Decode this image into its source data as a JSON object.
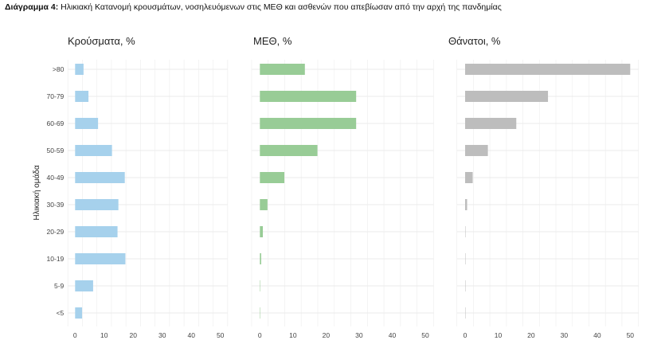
{
  "caption": {
    "label": "Διάγραμμα 4:",
    "text": " Ηλικιακή Κατανομή κρουσμάτων, νοσηλευόμενων στις ΜΕΘ και ασθενών που απεβίωσαν από την αρχή της πανδημίας"
  },
  "chart_data": [
    {
      "type": "bar",
      "orientation": "horizontal",
      "title": "Κρούσματα, %",
      "ylabel": "Ηλικιακή ομάδα",
      "xlim": [
        0,
        50
      ],
      "xticks": [
        0,
        10,
        20,
        30,
        40,
        50
      ],
      "grid": true,
      "color": "#a6d1ec",
      "categories": [
        ">80",
        "70-79",
        "60-69",
        "50-59",
        "40-49",
        "30-39",
        "20-29",
        "10-19",
        "5-9",
        "<5"
      ],
      "values": [
        2.9,
        4.6,
        7.9,
        12.7,
        17.1,
        14.9,
        14.6,
        17.3,
        6.2,
        2.4
      ]
    },
    {
      "type": "bar",
      "orientation": "horizontal",
      "title": "ΜΕΘ, %",
      "xlim": [
        0,
        50
      ],
      "xticks": [
        0,
        10,
        20,
        30,
        40,
        50
      ],
      "grid": true,
      "color": "#98cc96",
      "categories": [
        ">80",
        "70-79",
        "60-69",
        "50-59",
        "40-49",
        "30-39",
        "20-29",
        "10-19",
        "5-9",
        "<5"
      ],
      "values": [
        13.6,
        29.1,
        29.1,
        17.4,
        7.4,
        2.3,
        0.9,
        0.4,
        0.1,
        0.1
      ]
    },
    {
      "type": "bar",
      "orientation": "horizontal",
      "title": "Θάνατοι, %",
      "xlim": [
        0,
        50
      ],
      "xticks": [
        0,
        10,
        20,
        30,
        40,
        50
      ],
      "grid": true,
      "color": "#bdbdbd",
      "categories": [
        ">80",
        "70-79",
        "60-69",
        "50-59",
        "40-49",
        "30-39",
        "20-29",
        "10-19",
        "5-9",
        "<5"
      ],
      "values": [
        50,
        25.1,
        15.5,
        6.9,
        2.3,
        0.6,
        0.1,
        0.1,
        0,
        0.1
      ]
    }
  ]
}
